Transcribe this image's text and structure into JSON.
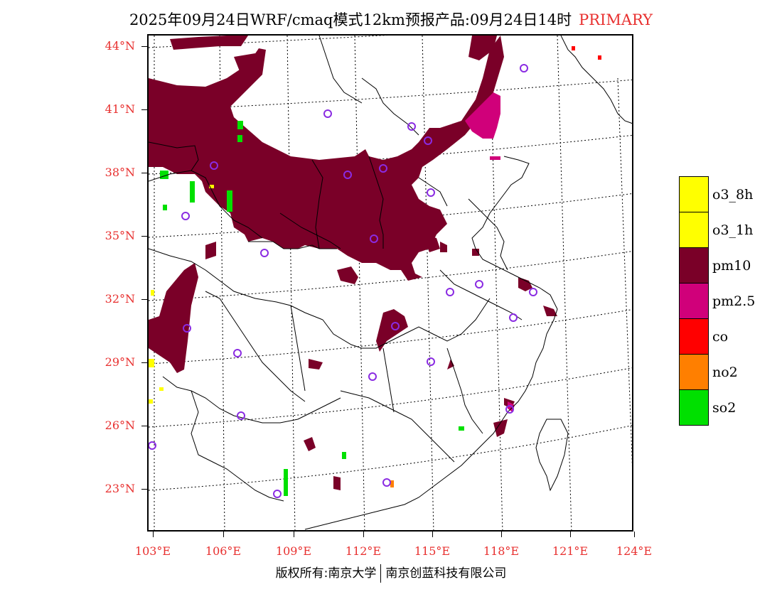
{
  "title": {
    "text": "2025年09月24日WRF/cmaq模式12km预报产品:09月24日14时",
    "variable": "PRIMARY"
  },
  "axes": {
    "latitudes": [
      "44°N",
      "41°N",
      "38°N",
      "35°N",
      "32°N",
      "29°N",
      "26°N",
      "23°N"
    ],
    "longitudes": [
      "103°E",
      "106°E",
      "109°E",
      "112°E",
      "115°E",
      "118°E",
      "121°E",
      "124°E"
    ]
  },
  "legend": [
    {
      "label": "o3_8h",
      "color": "#ffff00"
    },
    {
      "label": "o3_1h",
      "color": "#ffff00"
    },
    {
      "label": "pm10",
      "color": "#7a0028"
    },
    {
      "label": "pm2.5",
      "color": "#d0007a"
    },
    {
      "label": "co",
      "color": "#ff0000"
    },
    {
      "label": "no2",
      "color": "#ff7f00"
    },
    {
      "label": "so2",
      "color": "#00e000"
    }
  ],
  "footer": {
    "left": "版权所有:南京大学",
    "right": "南京创蓝科技有限公司"
  }
}
